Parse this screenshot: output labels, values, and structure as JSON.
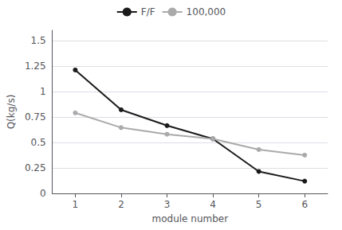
{
  "chart_data": {
    "type": "line",
    "x": [
      1,
      2,
      3,
      4,
      5,
      6
    ],
    "series": [
      {
        "name": "F/F",
        "color": "#1a1a1a",
        "marker": "o",
        "values": [
          1.21,
          0.82,
          0.665,
          0.535,
          0.215,
          0.12
        ]
      },
      {
        "name": "100,000",
        "color": "#aaaaaa",
        "marker": "o",
        "values": [
          0.79,
          0.645,
          0.58,
          0.535,
          0.43,
          0.375
        ]
      }
    ],
    "xlabel": "module number",
    "ylabel": "Q(kg/s)",
    "xlim": [
      0.5,
      6.5
    ],
    "xticks": [
      1,
      2,
      3,
      4,
      5,
      6
    ],
    "ylim": [
      0,
      1.6
    ],
    "yticks": [
      0,
      0.25,
      0.5,
      0.75,
      1,
      1.25,
      1.5
    ],
    "grid": true,
    "legend": "upper center"
  }
}
